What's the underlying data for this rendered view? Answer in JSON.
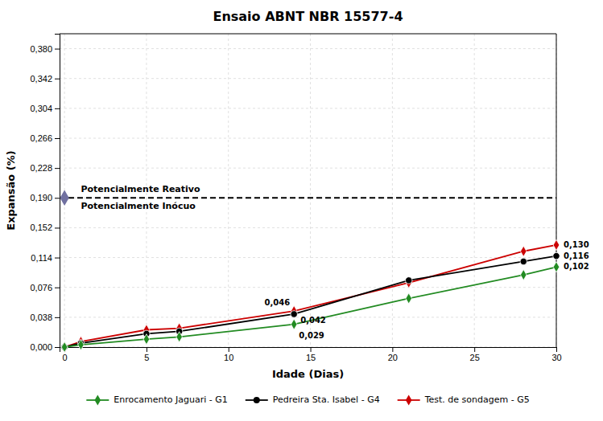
{
  "chart_data": {
    "type": "line",
    "title": "Ensaio ABNT NBR 15577-4",
    "x_label": "Idade (Dias)",
    "y_label": "Expansão (%)",
    "x": [
      0,
      1,
      5,
      7,
      14,
      21,
      28,
      30
    ],
    "series": [
      {
        "name": "Enrocamento Jaguari - G1",
        "color": "#228B22",
        "marker": "diamond",
        "values": [
          0.0,
          0.003,
          0.01,
          0.013,
          0.029,
          0.062,
          0.092,
          0.102
        ]
      },
      {
        "name": "Pedreira Sta. Isabel - G4",
        "color": "#000000",
        "marker": "circle",
        "values": [
          0.0,
          0.005,
          0.017,
          0.02,
          0.042,
          0.085,
          0.109,
          0.116
        ]
      },
      {
        "name": "Test. de sondagem - G5",
        "color": "#cc0000",
        "marker": "diamond",
        "values": [
          0.0,
          0.007,
          0.022,
          0.024,
          0.046,
          0.082,
          0.122,
          0.13
        ]
      }
    ],
    "xlim": [
      -0.3,
      30
    ],
    "ylim": [
      0,
      0.399
    ],
    "xticks": [
      0,
      5,
      10,
      15,
      20,
      25,
      30
    ],
    "yticks": [
      {
        "value": 0.0,
        "label": "0,000"
      },
      {
        "value": 0.038,
        "label": "0,038"
      },
      {
        "value": 0.076,
        "label": "0,076"
      },
      {
        "value": 0.114,
        "label": "0,114"
      },
      {
        "value": 0.152,
        "label": "0,152"
      },
      {
        "value": 0.19,
        "label": "0,190"
      },
      {
        "value": 0.228,
        "label": "0,228"
      },
      {
        "value": 0.266,
        "label": "0,266"
      },
      {
        "value": 0.304,
        "label": "0,304"
      },
      {
        "value": 0.342,
        "label": "0,342"
      },
      {
        "value": 0.38,
        "label": "0,380"
      }
    ],
    "grid": true,
    "legend": "bottom",
    "reference_line": {
      "value": 0.19,
      "color": "#000000",
      "line_style": "dashed",
      "marker": "diamond",
      "marker_x": 0,
      "marker_color": "#7070a0",
      "labels": [
        "Potencialmente Reativo",
        "Potencialmente Inócuo"
      ]
    },
    "annotations": [
      {
        "x": 14,
        "y": 0.046,
        "text": "0,046"
      },
      {
        "x": 14,
        "y": 0.042,
        "text": "0,042"
      },
      {
        "x": 14,
        "y": 0.029,
        "text": "0,029"
      },
      {
        "x": 30,
        "y": 0.13,
        "text": "0,130"
      },
      {
        "x": 30,
        "y": 0.116,
        "text": "0,116"
      },
      {
        "x": 30,
        "y": 0.102,
        "text": "0,102"
      }
    ]
  }
}
